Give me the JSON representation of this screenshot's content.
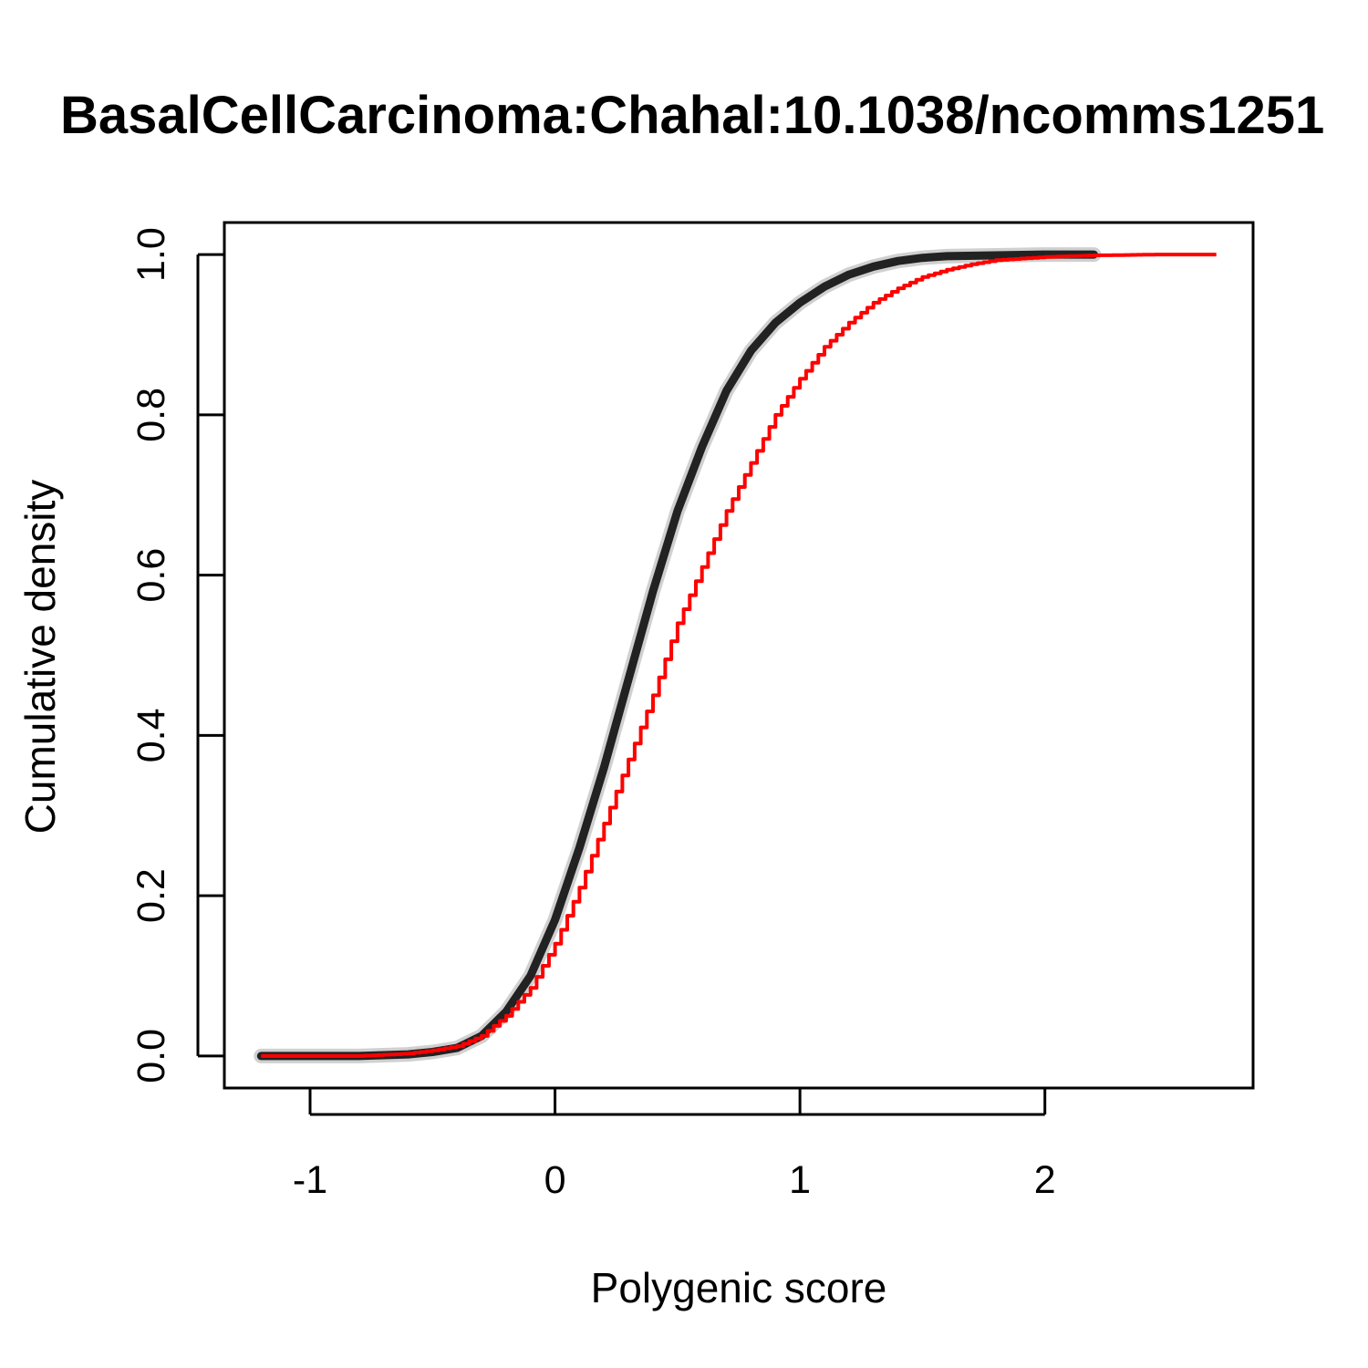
{
  "chart_data": {
    "type": "line",
    "title": "BasalCellCarcinoma:Chahal:10.1038/ncomms1251",
    "xlabel": "Polygenic score",
    "ylabel": "Cumulative density",
    "xlim": [
      -1.35,
      2.85
    ],
    "ylim": [
      -0.04,
      1.04
    ],
    "x_ticks": [
      -1,
      0,
      1,
      2
    ],
    "x_tick_labels": [
      "-1",
      "0",
      "1",
      "2"
    ],
    "y_ticks": [
      0.0,
      0.2,
      0.4,
      0.6,
      0.8,
      1.0
    ],
    "y_tick_labels": [
      "0.0",
      "0.2",
      "0.4",
      "0.6",
      "0.8",
      "1.0"
    ],
    "grid": false,
    "legend": "none",
    "series": [
      {
        "color": "#222222",
        "style": "thick smoothed band",
        "x": [
          -1.2,
          -0.8,
          -0.6,
          -0.5,
          -0.4,
          -0.3,
          -0.2,
          -0.1,
          0.0,
          0.1,
          0.2,
          0.3,
          0.4,
          0.5,
          0.6,
          0.7,
          0.8,
          0.9,
          1.0,
          1.1,
          1.2,
          1.3,
          1.4,
          1.5,
          1.6,
          1.8,
          2.0,
          2.2
        ],
        "y": [
          0.0,
          0.0,
          0.002,
          0.005,
          0.01,
          0.025,
          0.055,
          0.1,
          0.17,
          0.26,
          0.36,
          0.47,
          0.58,
          0.68,
          0.76,
          0.83,
          0.88,
          0.915,
          0.94,
          0.96,
          0.975,
          0.985,
          0.992,
          0.996,
          0.998,
          0.999,
          1.0,
          1.0
        ]
      },
      {
        "color": "#ff0000",
        "style": "step ECDF",
        "x": [
          -1.2,
          -0.8,
          -0.6,
          -0.5,
          -0.4,
          -0.3,
          -0.2,
          -0.1,
          0.0,
          0.1,
          0.2,
          0.3,
          0.4,
          0.5,
          0.6,
          0.7,
          0.8,
          0.9,
          1.0,
          1.1,
          1.2,
          1.3,
          1.4,
          1.5,
          1.6,
          1.7,
          1.8,
          1.9,
          2.0,
          2.2,
          2.45,
          2.7
        ],
        "y": [
          0.0,
          0.0,
          0.003,
          0.007,
          0.012,
          0.025,
          0.05,
          0.085,
          0.14,
          0.21,
          0.29,
          0.37,
          0.45,
          0.54,
          0.61,
          0.68,
          0.74,
          0.8,
          0.845,
          0.885,
          0.915,
          0.94,
          0.958,
          0.972,
          0.981,
          0.988,
          0.993,
          0.995,
          0.997,
          0.999,
          1.0,
          1.0
        ]
      }
    ]
  }
}
